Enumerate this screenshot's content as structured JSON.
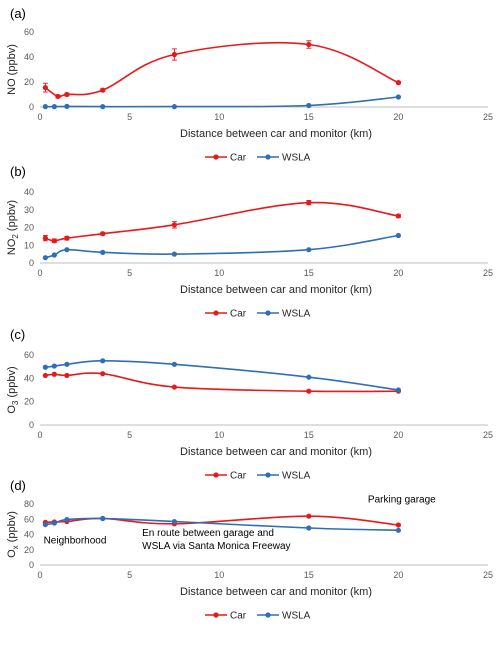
{
  "colors": {
    "car": "#e8191c",
    "wsla": "#2e6fb7",
    "axis": "#bfbfbf",
    "text": "#262626"
  },
  "chart_data": [
    {
      "type": "line",
      "panel_label": "(a)",
      "xlabel": "Distance between car and monitor (km)",
      "ylabel_main": "NO (ppbv)",
      "ylabel_sub": "",
      "ylabel_tail": "",
      "xlim": [
        0,
        25
      ],
      "xticks": [
        "0",
        "5",
        "10",
        "15",
        "20",
        "25"
      ],
      "ylim": [
        0,
        60
      ],
      "yticks": [
        "0",
        "20",
        "40",
        "60"
      ],
      "legend_position": "bottom-center",
      "series": [
        {
          "name": "Car",
          "color": "#e8191c",
          "x": [
            0.3,
            1.0,
            1.5,
            3.5,
            7.5,
            15,
            20
          ],
          "y": [
            15.5,
            8.5,
            10,
            13.5,
            42,
            50,
            19.5
          ],
          "errors": [
            3.5,
            1.0,
            1.0,
            1.0,
            4.5,
            3,
            1.0
          ]
        },
        {
          "name": "WSLA",
          "color": "#2e6fb7",
          "x": [
            0.3,
            0.8,
            1.5,
            3.5,
            7.5,
            15,
            20
          ],
          "y": [
            0.3,
            0.3,
            0.5,
            0.3,
            0.3,
            1.2,
            8
          ],
          "errors": []
        }
      ],
      "annotations": []
    },
    {
      "type": "line",
      "panel_label": "(b)",
      "xlabel": "Distance between car and monitor (km)",
      "ylabel_main": "NO",
      "ylabel_sub": "2",
      "ylabel_tail": " (ppbv)",
      "xlim": [
        0,
        25
      ],
      "xticks": [
        "0",
        "5",
        "10",
        "15",
        "20",
        "25"
      ],
      "ylim": [
        0,
        40
      ],
      "yticks": [
        "0",
        "10",
        "20",
        "30",
        "40"
      ],
      "legend_position": "bottom-center",
      "series": [
        {
          "name": "Car",
          "color": "#e8191c",
          "x": [
            0.3,
            0.8,
            1.5,
            3.5,
            7.5,
            15,
            20
          ],
          "y": [
            14,
            12.5,
            14,
            16.5,
            21.5,
            34,
            26.5
          ],
          "errors": [
            1.5,
            1.0,
            1.0,
            0.8,
            1.8,
            1.2,
            0.8
          ]
        },
        {
          "name": "WSLA",
          "color": "#2e6fb7",
          "x": [
            0.3,
            0.8,
            1.5,
            3.5,
            7.5,
            15,
            20
          ],
          "y": [
            3,
            4.5,
            7.5,
            6,
            5,
            7.5,
            15.5
          ],
          "errors": []
        }
      ],
      "annotations": []
    },
    {
      "type": "line",
      "panel_label": "(c)",
      "xlabel": "Distance between car and monitor (km)",
      "ylabel_main": "O",
      "ylabel_sub": "3",
      "ylabel_tail": " (ppbv)",
      "xlim": [
        0,
        25
      ],
      "xticks": [
        "0",
        "5",
        "10",
        "15",
        "20",
        "25"
      ],
      "ylim": [
        0,
        60
      ],
      "yticks": [
        "0",
        "20",
        "40",
        "60"
      ],
      "legend_position": "bottom-center",
      "series": [
        {
          "name": "Car",
          "color": "#e8191c",
          "x": [
            0.3,
            0.8,
            1.5,
            3.5,
            7.5,
            15,
            20
          ],
          "y": [
            42.5,
            43.5,
            42.5,
            44,
            32.5,
            29,
            29
          ],
          "errors": []
        },
        {
          "name": "WSLA",
          "color": "#2e6fb7",
          "x": [
            0.3,
            0.8,
            1.5,
            3.5,
            7.5,
            15,
            20
          ],
          "y": [
            49.5,
            50.5,
            52,
            55,
            52,
            41,
            30
          ],
          "errors": []
        }
      ],
      "annotations": []
    },
    {
      "type": "line",
      "panel_label": "(d)",
      "xlabel": "Distance between car and monitor (km)",
      "ylabel_main": "O",
      "ylabel_sub": "x",
      "ylabel_tail": " (ppbv)",
      "xlim": [
        0,
        25
      ],
      "xticks": [
        "0",
        "5",
        "10",
        "15",
        "20",
        "25"
      ],
      "ylim": [
        0,
        80
      ],
      "yticks": [
        "0",
        "20",
        "40",
        "60",
        "80"
      ],
      "legend_position": "bottom-center",
      "series": [
        {
          "name": "Car",
          "color": "#e8191c",
          "x": [
            0.3,
            0.8,
            1.5,
            3.5,
            7.5,
            15,
            20
          ],
          "y": [
            56,
            56.5,
            57,
            61,
            54,
            64,
            52.5
          ],
          "errors": []
        },
        {
          "name": "WSLA",
          "color": "#2e6fb7",
          "x": [
            0.3,
            0.8,
            1.5,
            3.5,
            7.5,
            15,
            20
          ],
          "y": [
            53,
            55,
            59.5,
            61,
            57,
            48.5,
            45.5
          ],
          "errors": []
        }
      ],
      "annotations": [
        {
          "lines": [
            "Neighborhood"
          ],
          "x": 0.2,
          "y": 28
        },
        {
          "lines": [
            "En route between garage and",
            "WSLA via Santa Monica Freeway"
          ],
          "x": 5.7,
          "y": 38
        },
        {
          "lines": [
            "Parking garage"
          ],
          "x": 18.3,
          "y": 82
        }
      ]
    }
  ]
}
